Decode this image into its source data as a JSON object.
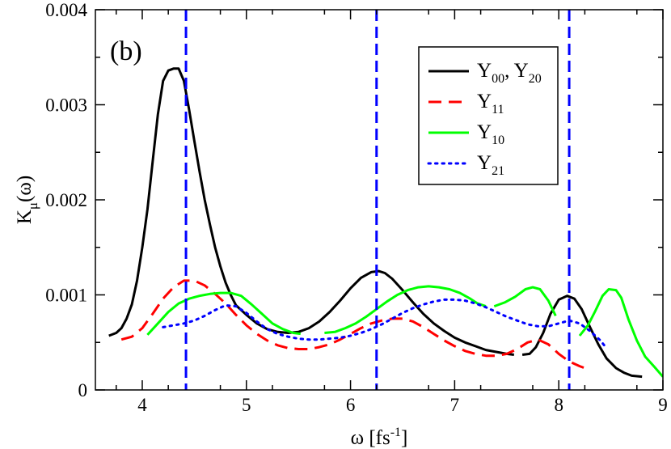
{
  "chart_data": {
    "type": "line",
    "panel_label": "(b)",
    "xlabel": {
      "main": "ω [fs",
      "sup": "-1",
      "tail": "]"
    },
    "ylabel": {
      "main": "K",
      "sub": "μ",
      "tail": "(ω)"
    },
    "xlim": [
      3.55,
      9.0
    ],
    "ylim": [
      0,
      0.004
    ],
    "xticks": [
      4,
      5,
      6,
      7,
      8,
      9
    ],
    "yticks": [
      0,
      0.001,
      0.002,
      0.003,
      0.004
    ],
    "xtick_labels": [
      "4",
      "5",
      "6",
      "7",
      "8",
      "9"
    ],
    "ytick_labels": [
      "0",
      "0.001",
      "0.002",
      "0.003",
      "0.004"
    ],
    "grid": false,
    "legend_position": "top-right",
    "vlines": {
      "x": [
        4.42,
        6.25,
        8.1
      ],
      "color": "#0000ff",
      "style": "dashed"
    },
    "series": [
      {
        "legend": "Y00, Y20",
        "legend_parts": [
          {
            "t": "Y"
          },
          {
            "t": "00",
            "sub": true
          },
          {
            "t": ", Y"
          },
          {
            "t": "20",
            "sub": true
          }
        ],
        "color": "#000000",
        "style": "solid",
        "segments": [
          [
            [
              3.68,
              0.00057
            ],
            [
              3.75,
              0.0006
            ],
            [
              3.8,
              0.00065
            ],
            [
              3.85,
              0.00075
            ],
            [
              3.9,
              0.0009
            ],
            [
              3.95,
              0.00115
            ],
            [
              4.0,
              0.0015
            ],
            [
              4.05,
              0.0019
            ],
            [
              4.1,
              0.0024
            ],
            [
              4.15,
              0.0029
            ],
            [
              4.2,
              0.00325
            ],
            [
              4.25,
              0.00336
            ],
            [
              4.3,
              0.00338
            ],
            [
              4.35,
              0.00338
            ],
            [
              4.4,
              0.00325
            ],
            [
              4.45,
              0.00295
            ],
            [
              4.5,
              0.00262
            ],
            [
              4.55,
              0.0023
            ],
            [
              4.6,
              0.002
            ],
            [
              4.65,
              0.00174
            ],
            [
              4.7,
              0.0015
            ],
            [
              4.75,
              0.0013
            ],
            [
              4.8,
              0.00113
            ],
            [
              4.85,
              0.001
            ],
            [
              4.9,
              0.00089
            ],
            [
              5.0,
              0.00079
            ],
            [
              5.1,
              0.0007
            ],
            [
              5.2,
              0.00064
            ],
            [
              5.3,
              0.00061
            ],
            [
              5.4,
              0.0006
            ],
            [
              5.5,
              0.00061
            ],
            [
              5.6,
              0.00065
            ],
            [
              5.7,
              0.00072
            ],
            [
              5.8,
              0.00082
            ],
            [
              5.9,
              0.00094
            ],
            [
              6.0,
              0.00107
            ],
            [
              6.1,
              0.00118
            ],
            [
              6.2,
              0.00124
            ],
            [
              6.27,
              0.00125
            ],
            [
              6.33,
              0.00123
            ],
            [
              6.4,
              0.00117
            ],
            [
              6.5,
              0.00105
            ],
            [
              6.6,
              0.00092
            ],
            [
              6.7,
              0.0008
            ],
            [
              6.8,
              0.0007
            ],
            [
              6.9,
              0.00062
            ],
            [
              7.0,
              0.00055
            ],
            [
              7.1,
              0.0005
            ],
            [
              7.2,
              0.00046
            ],
            [
              7.3,
              0.00042
            ],
            [
              7.4,
              0.0004
            ],
            [
              7.5,
              0.00038
            ],
            [
              7.57,
              0.00037
            ]
          ],
          [
            [
              7.65,
              0.00037
            ],
            [
              7.72,
              0.00038
            ],
            [
              7.78,
              0.00045
            ],
            [
              7.85,
              0.0006
            ],
            [
              7.92,
              0.0008
            ],
            [
              8.0,
              0.00095
            ],
            [
              8.08,
              0.00099
            ],
            [
              8.15,
              0.00096
            ],
            [
              8.22,
              0.00085
            ],
            [
              8.3,
              0.00066
            ],
            [
              8.38,
              0.00048
            ],
            [
              8.46,
              0.00033
            ],
            [
              8.55,
              0.00023
            ],
            [
              8.63,
              0.00018
            ],
            [
              8.7,
              0.00015
            ],
            [
              8.8,
              0.00014
            ]
          ]
        ]
      },
      {
        "legend": "Y11",
        "legend_parts": [
          {
            "t": "Y"
          },
          {
            "t": "11",
            "sub": true
          }
        ],
        "color": "#ff0000",
        "style": "dashed",
        "segments": [
          [
            [
              3.8,
              0.00053
            ],
            [
              3.9,
              0.00056
            ],
            [
              4.0,
              0.00065
            ],
            [
              4.1,
              0.0008
            ],
            [
              4.2,
              0.00096
            ],
            [
              4.3,
              0.00108
            ],
            [
              4.4,
              0.00115
            ],
            [
              4.5,
              0.00115
            ],
            [
              4.6,
              0.0011
            ],
            [
              4.7,
              0.00101
            ],
            [
              4.8,
              0.00091
            ],
            [
              4.9,
              0.00079
            ],
            [
              5.0,
              0.00068
            ],
            [
              5.1,
              0.00059
            ],
            [
              5.2,
              0.00052
            ],
            [
              5.3,
              0.00047
            ],
            [
              5.4,
              0.00044
            ],
            [
              5.5,
              0.00043
            ],
            [
              5.6,
              0.00043
            ],
            [
              5.7,
              0.00045
            ],
            [
              5.8,
              0.00048
            ],
            [
              5.9,
              0.00053
            ],
            [
              6.0,
              0.00059
            ],
            [
              6.1,
              0.00065
            ],
            [
              6.2,
              0.0007
            ],
            [
              6.3,
              0.00073
            ],
            [
              6.4,
              0.00075
            ],
            [
              6.5,
              0.00075
            ],
            [
              6.6,
              0.00072
            ],
            [
              6.7,
              0.00066
            ],
            [
              6.8,
              0.00059
            ],
            [
              6.9,
              0.00052
            ],
            [
              7.0,
              0.00046
            ],
            [
              7.1,
              0.00041
            ],
            [
              7.2,
              0.00038
            ],
            [
              7.3,
              0.00036
            ],
            [
              7.4,
              0.00036
            ],
            [
              7.5,
              0.00038
            ],
            [
              7.6,
              0.00043
            ],
            [
              7.7,
              0.0005
            ],
            [
              7.8,
              0.00053
            ],
            [
              7.9,
              0.00048
            ],
            [
              8.0,
              0.00038
            ],
            [
              8.1,
              0.0003
            ],
            [
              8.2,
              0.00025
            ],
            [
              8.25,
              0.00023
            ]
          ]
        ]
      },
      {
        "legend": "Y10",
        "legend_parts": [
          {
            "t": "Y"
          },
          {
            "t": "10",
            "sub": true
          }
        ],
        "color": "#00ff00",
        "style": "solid",
        "segments": [
          [
            [
              4.05,
              0.00058
            ],
            [
              4.15,
              0.0007
            ],
            [
              4.25,
              0.00082
            ],
            [
              4.35,
              0.00091
            ],
            [
              4.45,
              0.00096
            ],
            [
              4.55,
              0.00099
            ],
            [
              4.65,
              0.00101
            ],
            [
              4.75,
              0.00102
            ],
            [
              4.85,
              0.00102
            ],
            [
              4.95,
              0.00099
            ],
            [
              5.05,
              0.0009
            ],
            [
              5.15,
              0.0008
            ],
            [
              5.25,
              0.0007
            ],
            [
              5.35,
              0.00064
            ],
            [
              5.45,
              0.0006
            ],
            [
              5.52,
              0.00059
            ]
          ],
          [
            [
              5.75,
              0.0006
            ],
            [
              5.85,
              0.00061
            ],
            [
              5.95,
              0.00065
            ],
            [
              6.05,
              0.0007
            ],
            [
              6.15,
              0.00077
            ],
            [
              6.25,
              0.00085
            ],
            [
              6.35,
              0.00093
            ],
            [
              6.45,
              0.001
            ],
            [
              6.55,
              0.00105
            ],
            [
              6.65,
              0.00108
            ],
            [
              6.75,
              0.00109
            ],
            [
              6.85,
              0.00108
            ],
            [
              6.95,
              0.00106
            ],
            [
              7.05,
              0.00102
            ],
            [
              7.15,
              0.00096
            ],
            [
              7.22,
              0.00091
            ],
            [
              7.3,
              0.00088
            ]
          ],
          [
            [
              7.38,
              0.00088
            ],
            [
              7.48,
              0.00092
            ],
            [
              7.58,
              0.00098
            ],
            [
              7.68,
              0.00106
            ],
            [
              7.75,
              0.00108
            ],
            [
              7.82,
              0.00106
            ],
            [
              7.9,
              0.00094
            ],
            [
              7.97,
              0.00078
            ]
          ],
          [
            [
              8.2,
              0.00057
            ],
            [
              8.28,
              0.00068
            ],
            [
              8.35,
              0.00083
            ],
            [
              8.42,
              0.00099
            ],
            [
              8.48,
              0.00106
            ],
            [
              8.55,
              0.00105
            ],
            [
              8.6,
              0.00097
            ],
            [
              8.67,
              0.00074
            ],
            [
              8.75,
              0.00052
            ],
            [
              8.83,
              0.00035
            ],
            [
              8.92,
              0.00024
            ],
            [
              9.0,
              0.00014
            ]
          ]
        ]
      },
      {
        "legend": "Y21",
        "legend_parts": [
          {
            "t": "Y"
          },
          {
            "t": "21",
            "sub": true
          }
        ],
        "color": "#0000ff",
        "style": "dotted",
        "segments": [
          [
            [
              4.2,
              0.00066
            ],
            [
              4.3,
              0.00068
            ],
            [
              4.4,
              0.0007
            ],
            [
              4.5,
              0.00073
            ],
            [
              4.6,
              0.00078
            ],
            [
              4.7,
              0.00084
            ],
            [
              4.8,
              0.00089
            ],
            [
              4.9,
              0.00088
            ],
            [
              5.0,
              0.00081
            ],
            [
              5.1,
              0.00072
            ],
            [
              5.2,
              0.00064
            ],
            [
              5.3,
              0.00059
            ],
            [
              5.4,
              0.00056
            ],
            [
              5.5,
              0.00054
            ],
            [
              5.6,
              0.00053
            ],
            [
              5.7,
              0.00053
            ],
            [
              5.8,
              0.00054
            ],
            [
              5.9,
              0.00055
            ],
            [
              6.0,
              0.00057
            ],
            [
              6.1,
              0.0006
            ],
            [
              6.2,
              0.00064
            ],
            [
              6.3,
              0.00069
            ],
            [
              6.4,
              0.00075
            ],
            [
              6.5,
              0.00081
            ],
            [
              6.6,
              0.00086
            ],
            [
              6.7,
              0.0009
            ],
            [
              6.8,
              0.00093
            ],
            [
              6.9,
              0.00095
            ],
            [
              7.0,
              0.00095
            ],
            [
              7.1,
              0.00094
            ],
            [
              7.2,
              0.00091
            ],
            [
              7.3,
              0.00087
            ],
            [
              7.4,
              0.00082
            ],
            [
              7.5,
              0.00077
            ],
            [
              7.6,
              0.00073
            ],
            [
              7.7,
              0.00069
            ],
            [
              7.8,
              0.00067
            ],
            [
              7.9,
              0.00067
            ],
            [
              8.0,
              0.0007
            ],
            [
              8.1,
              0.00073
            ],
            [
              8.2,
              0.0007
            ],
            [
              8.3,
              0.00062
            ],
            [
              8.4,
              0.00052
            ],
            [
              8.45,
              0.00045
            ]
          ]
        ]
      }
    ]
  }
}
